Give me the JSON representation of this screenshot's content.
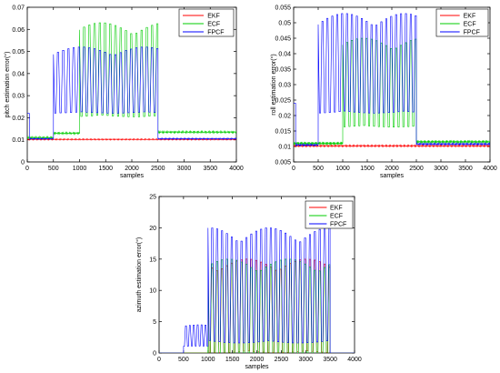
{
  "chart_data": [
    {
      "type": "line",
      "xlabel": "samples",
      "ylabel": "pitch estimation error(°)",
      "xlim": [
        0,
        4000
      ],
      "ylim": [
        0,
        0.07
      ],
      "xticks": [
        "0",
        "500",
        "1000",
        "1500",
        "2000",
        "2500",
        "3000",
        "3500",
        "4000"
      ],
      "yticks": [
        "0",
        "0.01",
        "0.02",
        "0.03",
        "0.04",
        "0.05",
        "0.06",
        "0.07"
      ],
      "legend_position": "top-right",
      "grid": false,
      "series": [
        {
          "name": "EKF",
          "color": "#ff0000",
          "phases": [
            {
              "x": [
                0,
                4000
              ],
              "base": 0.0102,
              "amp": 0.0003,
              "period": 40
            }
          ]
        },
        {
          "name": "ECF",
          "color": "#00cc00",
          "phases": [
            {
              "x": [
                0,
                500
              ],
              "base": 0.011,
              "amp": 0.0005,
              "period": 40
            },
            {
              "x": [
                500,
                1000
              ],
              "base": 0.013,
              "amp": 0.0005,
              "period": 40
            },
            {
              "x": [
                1000,
                2500
              ],
              "base": 0.026,
              "amp": 0.037,
              "period": 100
            },
            {
              "x": [
                2500,
                4000
              ],
              "base": 0.0135,
              "amp": 0.0005,
              "period": 40
            }
          ]
        },
        {
          "name": "FPCF",
          "color": "#0000ff",
          "phases": [
            {
              "x": [
                0,
                40
              ],
              "base": 0.022,
              "amp": 0.0,
              "period": 40
            },
            {
              "x": [
                40,
                500
              ],
              "base": 0.0105,
              "amp": 0.0003,
              "period": 40
            },
            {
              "x": [
                500,
                2500
              ],
              "base": 0.026,
              "amp": 0.026,
              "period": 100
            },
            {
              "x": [
                2500,
                4000
              ],
              "base": 0.0105,
              "amp": 0.0003,
              "period": 40
            }
          ]
        }
      ]
    },
    {
      "type": "line",
      "xlabel": "samples",
      "ylabel": "roll estimation error(°)",
      "xlim": [
        0,
        4000
      ],
      "ylim": [
        0.005,
        0.055
      ],
      "xticks": [
        "0",
        "500",
        "1000",
        "1500",
        "2000",
        "2500",
        "3000",
        "3500",
        "4000"
      ],
      "yticks": [
        "0.005",
        "0.01",
        "0.015",
        "0.02",
        "0.025",
        "0.03",
        "0.035",
        "0.04",
        "0.045",
        "0.05",
        "0.055"
      ],
      "legend_position": "top-right",
      "grid": false,
      "series": [
        {
          "name": "EKF",
          "color": "#ff0000",
          "phases": [
            {
              "x": [
                0,
                4000
              ],
              "base": 0.0102,
              "amp": 0.0003,
              "period": 40
            }
          ]
        },
        {
          "name": "ECF",
          "color": "#00cc00",
          "phases": [
            {
              "x": [
                0,
                1000
              ],
              "base": 0.011,
              "amp": 0.0005,
              "period": 40
            },
            {
              "x": [
                1000,
                2500
              ],
              "base": 0.02,
              "amp": 0.025,
              "period": 100
            },
            {
              "x": [
                2500,
                4000
              ],
              "base": 0.0115,
              "amp": 0.0005,
              "period": 40
            }
          ]
        },
        {
          "name": "FPCF",
          "color": "#0000ff",
          "phases": [
            {
              "x": [
                0,
                40
              ],
              "base": 0.024,
              "amp": 0.0,
              "period": 40
            },
            {
              "x": [
                40,
                500
              ],
              "base": 0.0105,
              "amp": 0.0003,
              "period": 40
            },
            {
              "x": [
                500,
                2500
              ],
              "base": 0.025,
              "amp": 0.028,
              "period": 100
            },
            {
              "x": [
                2500,
                4000
              ],
              "base": 0.0108,
              "amp": 0.0003,
              "period": 40
            }
          ]
        }
      ]
    },
    {
      "type": "line",
      "xlabel": "samples",
      "ylabel": "azimuth estimation error(°)",
      "xlim": [
        0,
        4000
      ],
      "ylim": [
        0,
        25
      ],
      "xticks": [
        "0",
        "500",
        "1000",
        "1500",
        "2000",
        "2500",
        "3000",
        "3500",
        "4000"
      ],
      "yticks": [
        "0",
        "5",
        "10",
        "15",
        "20",
        "25"
      ],
      "legend_position": "top-right",
      "grid": false,
      "series": [
        {
          "name": "EKF",
          "color": "#ff0000",
          "phases": [
            {
              "x": [
                0,
                1000
              ],
              "base": 0.0,
              "amp": 0.0,
              "period": 40
            },
            {
              "x": [
                1000,
                3500
              ],
              "base": 2.0,
              "amp": 13.0,
              "period": 100
            },
            {
              "x": [
                3500,
                4000
              ],
              "base": 0.0,
              "amp": 0.0,
              "period": 40
            }
          ]
        },
        {
          "name": "ECF",
          "color": "#00cc00",
          "phases": [
            {
              "x": [
                0,
                1000
              ],
              "base": 0.0,
              "amp": 0.0,
              "period": 40
            },
            {
              "x": [
                1000,
                3500
              ],
              "base": 1.0,
              "amp": 14.0,
              "period": 100
            },
            {
              "x": [
                3500,
                4000
              ],
              "base": 0.0,
              "amp": 0.0,
              "period": 40
            }
          ]
        },
        {
          "name": "FPCF",
          "color": "#0000ff",
          "phases": [
            {
              "x": [
                0,
                500
              ],
              "base": 0.0,
              "amp": 0.0,
              "period": 40
            },
            {
              "x": [
                500,
                1000
              ],
              "base": 1.5,
              "amp": 3.0,
              "period": 80
            },
            {
              "x": [
                1000,
                3500
              ],
              "base": 4.0,
              "amp": 16.0,
              "period": 100
            },
            {
              "x": [
                3500,
                4000
              ],
              "base": 0.0,
              "amp": 0.0,
              "period": 40
            }
          ]
        }
      ]
    }
  ]
}
